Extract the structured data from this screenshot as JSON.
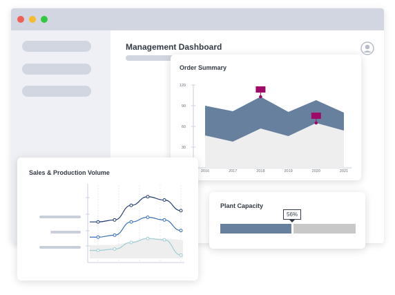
{
  "window": {
    "controls": [
      "close",
      "minimize",
      "maximize"
    ],
    "colors": {
      "close": "#f05e56",
      "minimize": "#f6bb2e",
      "maximize": "#30c83f"
    }
  },
  "main": {
    "title": "Management Dashboard",
    "avatar_icon": "user-avatar-icon"
  },
  "order_summary": {
    "title": "Order Summary",
    "chart_data": {
      "type": "area",
      "x": [
        2016,
        2017,
        2018,
        2019,
        2020,
        2021
      ],
      "x_ticks": [
        "2016",
        "2017",
        "2018",
        "2019",
        "2020",
        "2021"
      ],
      "y_ticks": [
        "120",
        "90",
        "60",
        "30"
      ],
      "ylim": [
        0,
        120
      ],
      "series": [
        {
          "values": [
            90,
            82,
            103,
            81,
            98,
            80
          ],
          "color": "#66809e"
        },
        {
          "values": [
            47,
            38,
            57,
            46,
            65,
            54
          ],
          "color": "#eeeeee"
        }
      ],
      "markers": [
        {
          "x": 2018,
          "y": 103,
          "color": "#a0086a"
        },
        {
          "x": 2020,
          "y": 65,
          "color": "#a0086a"
        }
      ]
    }
  },
  "sales_production": {
    "title": "Sales & Production Volume",
    "chart_data": {
      "type": "line",
      "x": [
        1,
        2,
        3,
        4,
        5,
        6
      ],
      "ylim": [
        0,
        100
      ],
      "series": [
        {
          "values": [
            55,
            58,
            80,
            93,
            88,
            72
          ],
          "color": "#1e3a6e"
        },
        {
          "values": [
            32,
            35,
            55,
            62,
            58,
            42
          ],
          "color": "#3a6fb8"
        },
        {
          "values": [
            12,
            14,
            24,
            30,
            28,
            5
          ],
          "color": "#9ccfd3"
        }
      ],
      "area_series": {
        "values": [
          0,
          20,
          25,
          30,
          30,
          28
        ],
        "color": "#eeeeee"
      }
    }
  },
  "plant_capacity": {
    "title": "Plant Capacity",
    "value_label": "56%",
    "value": 0.56,
    "colors": {
      "filled": "#66809e",
      "remaining": "#c8c8c8"
    }
  }
}
